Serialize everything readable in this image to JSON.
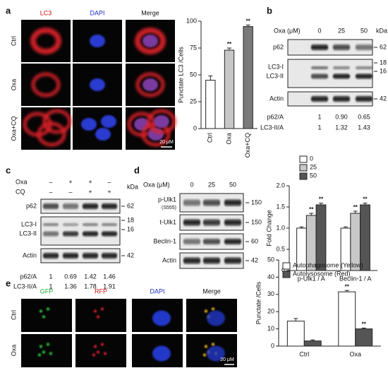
{
  "panels": {
    "a": {
      "label": "a",
      "channels": [
        "LC3",
        "DAPI",
        "Merge"
      ],
      "rows": [
        "Ctrl",
        "Oxa",
        "Oxa+CQ"
      ],
      "scale": "20 μM"
    },
    "b": {
      "label": "b",
      "treatment": "Oxa (μM)",
      "doses": [
        "0",
        "25",
        "50"
      ],
      "kda": "kDa",
      "blots": [
        "p62",
        "LC3-I",
        "LC3-II",
        "Actin"
      ],
      "markers": [
        "62",
        "18",
        "16",
        "42"
      ],
      "quant": [
        {
          "name": "p62/A",
          "values": [
            "1",
            "0.90",
            "0.65"
          ]
        },
        {
          "name": "LC3-II/A",
          "values": [
            "1",
            "1.32",
            "1.43"
          ]
        }
      ]
    },
    "c": {
      "label": "c",
      "rows": [
        {
          "name": "Oxa",
          "signs": [
            "–",
            "+",
            "+",
            "–"
          ]
        },
        {
          "name": "CQ",
          "signs": [
            "–",
            "–",
            "+",
            "+"
          ]
        }
      ],
      "kda": "kDa",
      "blots": [
        "p62",
        "LC3-I",
        "LC3-II",
        "Actin"
      ],
      "markers": [
        "62",
        "18",
        "16",
        "42"
      ],
      "quant": [
        {
          "name": "p62/A",
          "values": [
            "1",
            "0.69",
            "1.42",
            "1.46"
          ]
        },
        {
          "name": "LC3-II/A",
          "values": [
            "1",
            "1.36",
            "1.78",
            "1.91"
          ]
        }
      ]
    },
    "d": {
      "label": "d",
      "treatment": "Oxa (μM)",
      "doses": [
        "0",
        "25",
        "50"
      ],
      "blots": [
        "p-Ulk1",
        "t-Ulk1",
        "Beclin-1",
        "Actin"
      ],
      "site": "(S555)",
      "markers": [
        "150",
        "150",
        "60",
        "42"
      ]
    },
    "e": {
      "label": "e",
      "channels": [
        "GFP",
        "RFP",
        "DAPI",
        "Merge"
      ],
      "rows": [
        "Ctrl",
        "Oxa"
      ],
      "scale": "20 μM"
    }
  },
  "chart_data": [
    {
      "type": "bar",
      "ylabel": "Punctate LC3 /Cells",
      "categories": [
        "Ctrl",
        "Oxa",
        "Oxa+CQ"
      ],
      "values": [
        45,
        73,
        95
      ],
      "errors": [
        4,
        2,
        1.5
      ],
      "colors": [
        "#ffffff",
        "#c8c8c8",
        "#7a7a7a"
      ],
      "significance": [
        null,
        "**",
        "**"
      ],
      "ylim": [
        0,
        100
      ],
      "yticks": [
        0,
        25,
        50,
        75,
        100
      ]
    },
    {
      "type": "bar",
      "ylabel": "Fold Change",
      "categories": [
        "p-Ulk1 / A",
        "Beclin-1 / A"
      ],
      "series": [
        {
          "name": "0",
          "color": "#ffffff",
          "values": [
            1,
            1
          ],
          "errors": [
            0.03,
            0.03
          ],
          "significance": [
            null,
            null
          ]
        },
        {
          "name": "25",
          "color": "#c8c8c8",
          "values": [
            1.3,
            1.35
          ],
          "errors": [
            0.05,
            0.05
          ],
          "significance": [
            "**",
            "**"
          ]
        },
        {
          "name": "50",
          "color": "#555555",
          "values": [
            1.55,
            1.55
          ],
          "errors": [
            0.04,
            0.04
          ],
          "significance": [
            "**",
            "**"
          ]
        }
      ],
      "ylim": [
        0,
        2
      ],
      "yticks": [
        0,
        0.5,
        {
          "value": 1,
          "label": "1.0"
        },
        1.5,
        {
          "value": 2,
          "label": "2.0"
        }
      ],
      "legend": "top-left"
    },
    {
      "type": "bar",
      "ylabel": "Punctate /Cells",
      "categories": [
        "Ctrl",
        "Oxa"
      ],
      "series": [
        {
          "name": "Autophagosome (Yellow)",
          "color": "#ffffff",
          "values": [
            14.5,
            31.5
          ],
          "errors": [
            1.5,
            0.8
          ],
          "significance": [
            null,
            "**"
          ]
        },
        {
          "name": "Autolysosome (Red)",
          "color": "#555555",
          "values": [
            3,
            10
          ],
          "errors": [
            0.6,
            0.5
          ],
          "significance": [
            null,
            "**"
          ]
        }
      ],
      "ylim": [
        0,
        50
      ],
      "yticks": [
        0,
        10,
        20,
        30,
        40,
        50
      ],
      "legend": "top-right"
    }
  ]
}
